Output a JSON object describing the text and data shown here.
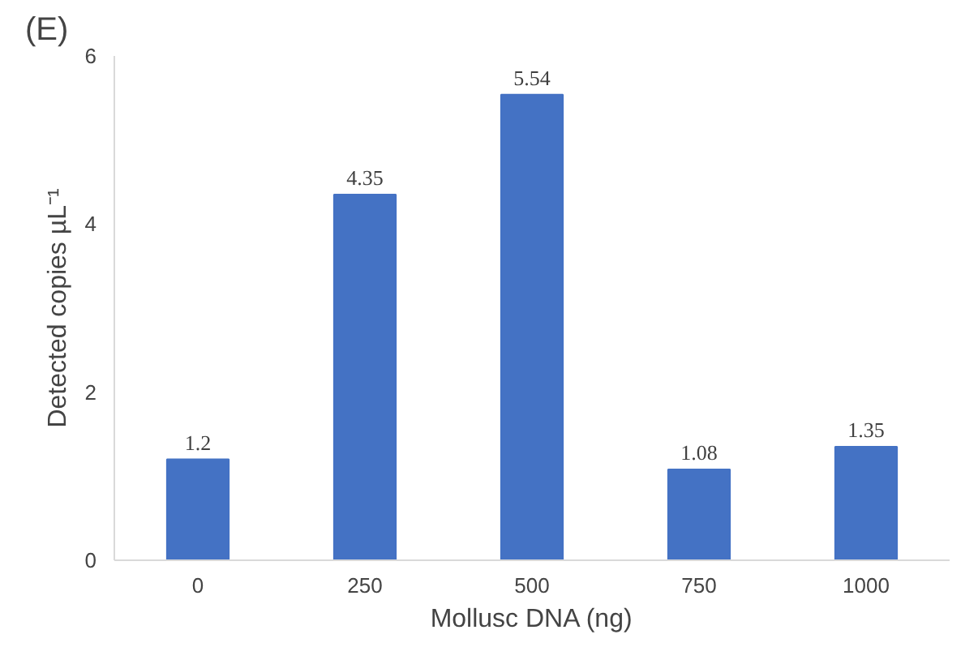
{
  "chart_data": {
    "type": "bar",
    "title": "(E)",
    "xlabel": "Mollusc DNA (ng)",
    "ylabel": "Detected copies µL⁻¹",
    "categories": [
      "0",
      "250",
      "500",
      "750",
      "1000"
    ],
    "values": [
      1.2,
      4.35,
      5.54,
      1.08,
      1.35
    ],
    "color": "#4472c4",
    "ylim": [
      0,
      6
    ],
    "yticks": [
      0,
      2,
      4,
      6
    ],
    "grid": false,
    "data_labels": true
  }
}
